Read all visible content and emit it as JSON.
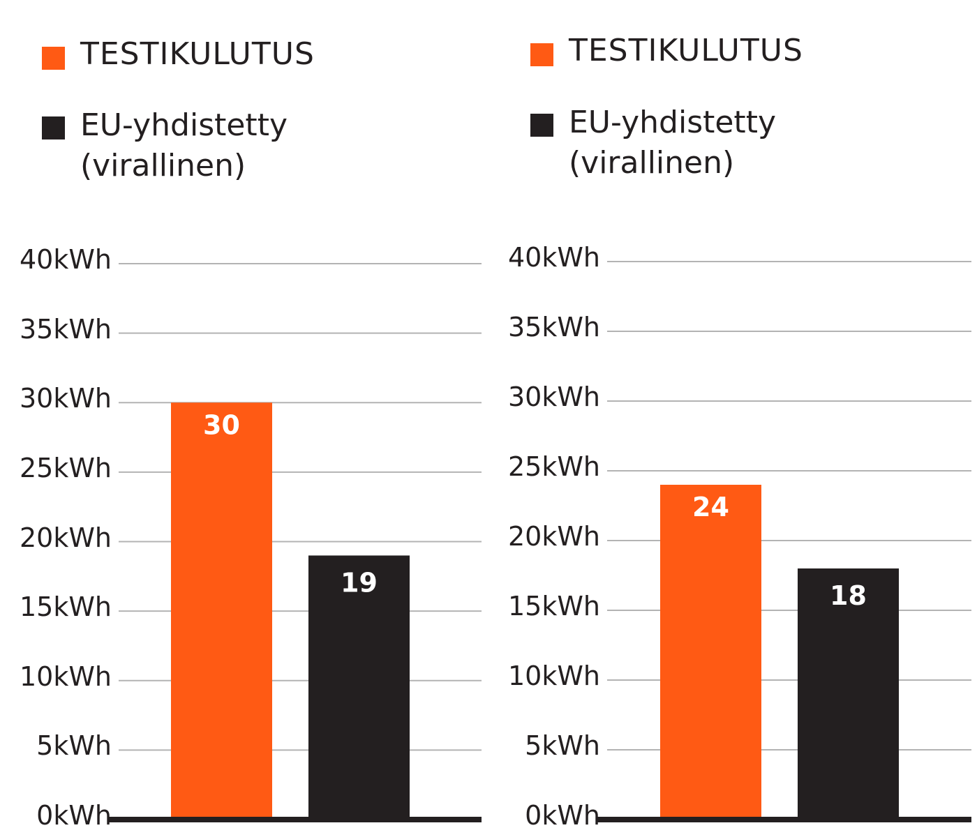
{
  "colors": {
    "test": "#ff5a14",
    "eu": "#231f20",
    "grid": "#b3b3b3",
    "axis": "#231f20"
  },
  "legend": {
    "test_label": "TESTIKULUTUS",
    "eu_label_line1": "EU-yhdistetty",
    "eu_label_line2": "(virallinen)"
  },
  "chart_data": [
    {
      "type": "bar",
      "categories": [
        "TESTIKULUTUS",
        "EU-yhdistetty (virallinen)"
      ],
      "values": [
        30,
        19
      ],
      "value_labels": [
        "30",
        "19"
      ],
      "unit": "kWh",
      "ylim": [
        0,
        40
      ],
      "yticks": [
        0,
        5,
        10,
        15,
        20,
        25,
        30,
        35,
        40
      ],
      "ytick_labels": [
        "0kWh",
        "5kWh",
        "10kWh",
        "15kWh",
        "20kWh",
        "25kWh",
        "30kWh",
        "35kWh",
        "40kWh"
      ],
      "grid": true,
      "legend_position": "top-left"
    },
    {
      "type": "bar",
      "categories": [
        "TESTIKULUTUS",
        "EU-yhdistetty (virallinen)"
      ],
      "values": [
        24,
        18
      ],
      "value_labels": [
        "24",
        "18"
      ],
      "unit": "kWh",
      "ylim": [
        0,
        40
      ],
      "yticks": [
        0,
        5,
        10,
        15,
        20,
        25,
        30,
        35,
        40
      ],
      "ytick_labels": [
        "0kWh",
        "5kWh",
        "10kWh",
        "15kWh",
        "20kWh",
        "25kWh",
        "30kWh",
        "35kWh",
        "40kWh"
      ],
      "grid": true,
      "legend_position": "top-left"
    }
  ]
}
